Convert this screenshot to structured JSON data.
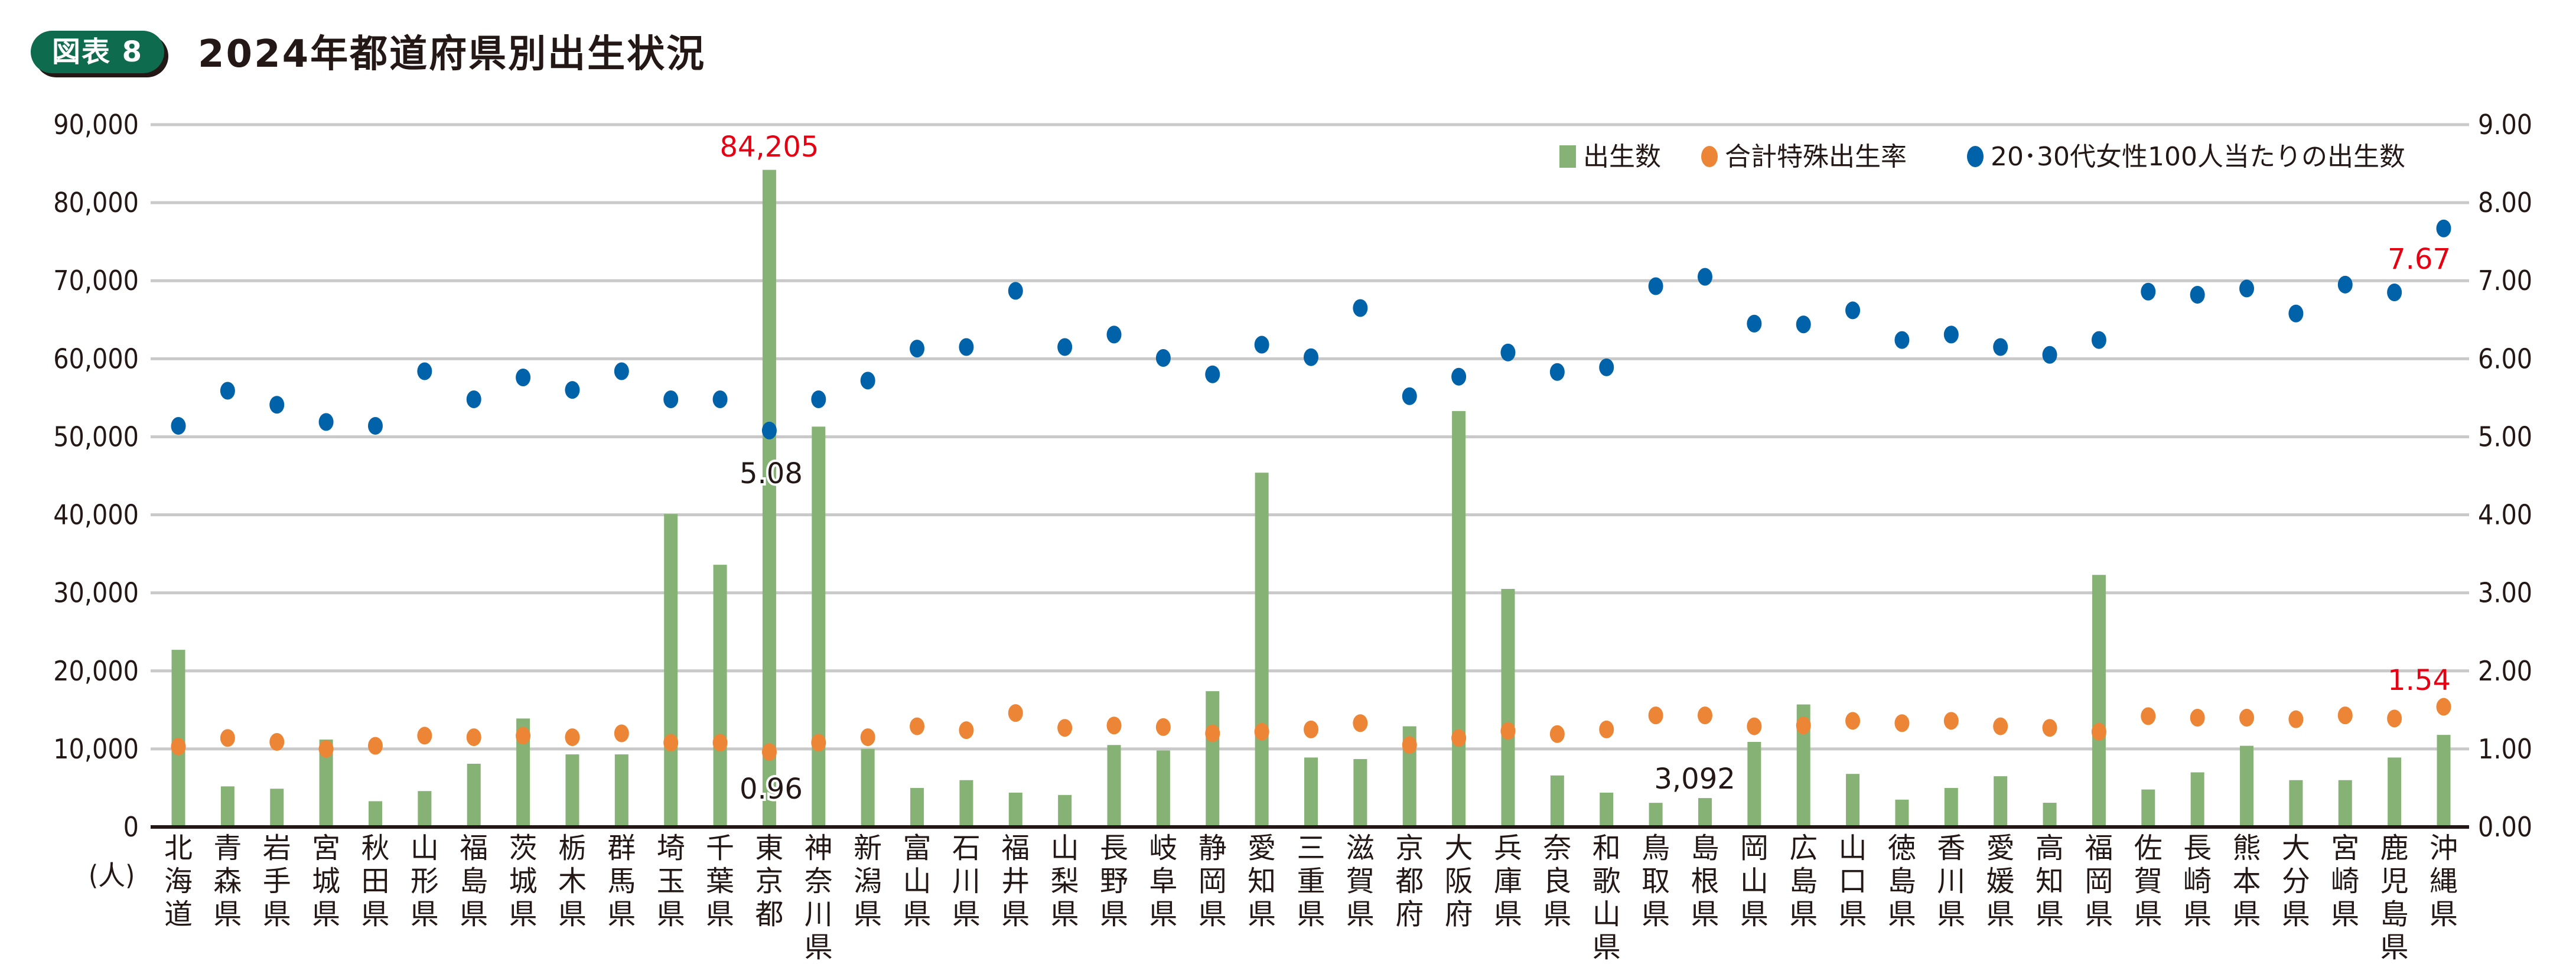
{
  "figure_tag": "図表 8",
  "title": "2024年都道府県別出生状況",
  "chart_data": {
    "type": "bar",
    "title": "2024年都道府県別出生状況",
    "y_unit_label": "(人)",
    "ylim": [
      0,
      90000
    ],
    "y2lim": [
      0,
      9
    ],
    "yticks": [
      "0",
      "10,000",
      "20,000",
      "30,000",
      "40,000",
      "50,000",
      "60,000",
      "70,000",
      "80,000",
      "90,000"
    ],
    "y2ticks": [
      "0.00",
      "1.00",
      "2.00",
      "3.00",
      "4.00",
      "5.00",
      "6.00",
      "7.00",
      "8.00",
      "9.00"
    ],
    "grid": true,
    "legend_position": "top-right",
    "colors": {
      "births": "#86b276",
      "tfr": "#ec8636",
      "per100": "#0062a8",
      "highlight": "#e60012",
      "axis": "#231815",
      "grid": "#c9c9c9",
      "badge": "#0e6b4e"
    },
    "categories": [
      "北海道",
      "青森県",
      "岩手県",
      "宮城県",
      "秋田県",
      "山形県",
      "福島県",
      "茨城県",
      "栃木県",
      "群馬県",
      "埼玉県",
      "千葉県",
      "東京都",
      "神奈川県",
      "新潟県",
      "富山県",
      "石川県",
      "福井県",
      "山梨県",
      "長野県",
      "岐阜県",
      "静岡県",
      "愛知県",
      "三重県",
      "滋賀県",
      "京都府",
      "大阪府",
      "兵庫県",
      "奈良県",
      "和歌山県",
      "鳥取県",
      "島根県",
      "岡山県",
      "広島県",
      "山口県",
      "徳島県",
      "香川県",
      "愛媛県",
      "高知県",
      "福岡県",
      "佐賀県",
      "長崎県",
      "熊本県",
      "大分県",
      "宮崎県",
      "鹿児島県",
      "沖縄県"
    ],
    "series": [
      {
        "name": "出生数",
        "type": "bar",
        "axis": "left",
        "values": [
          22700,
          5200,
          4900,
          11200,
          3300,
          4600,
          8100,
          13900,
          9300,
          9300,
          40100,
          33600,
          84205,
          51300,
          10000,
          5000,
          6000,
          4400,
          4100,
          10500,
          9800,
          17400,
          45400,
          8900,
          8700,
          12900,
          53300,
          30500,
          6600,
          4400,
          3092,
          3700,
          10900,
          15700,
          6800,
          3500,
          5000,
          6500,
          3100,
          32300,
          4800,
          7000,
          10400,
          6000,
          6000,
          8900,
          11800
        ]
      },
      {
        "name": "合計特殊出生率",
        "type": "scatter",
        "axis": "right",
        "values": [
          1.03,
          1.14,
          1.09,
          1.0,
          1.04,
          1.17,
          1.15,
          1.17,
          1.15,
          1.2,
          1.08,
          1.08,
          0.96,
          1.08,
          1.15,
          1.29,
          1.24,
          1.46,
          1.27,
          1.3,
          1.28,
          1.2,
          1.22,
          1.25,
          1.33,
          1.05,
          1.14,
          1.23,
          1.19,
          1.25,
          1.43,
          1.43,
          1.29,
          1.3,
          1.36,
          1.33,
          1.36,
          1.29,
          1.27,
          1.22,
          1.42,
          1.4,
          1.4,
          1.38,
          1.43,
          1.39,
          1.54
        ]
      },
      {
        "name": "20･30代女性100人当たりの出生数",
        "type": "scatter",
        "axis": "right",
        "values": [
          5.14,
          5.59,
          5.41,
          5.19,
          5.14,
          5.84,
          5.48,
          5.76,
          5.6,
          5.84,
          5.48,
          5.48,
          5.08,
          5.48,
          5.72,
          6.13,
          6.15,
          6.87,
          6.15,
          6.31,
          6.01,
          5.8,
          6.18,
          6.02,
          6.65,
          5.52,
          5.77,
          6.08,
          5.83,
          5.89,
          6.93,
          7.05,
          6.45,
          6.44,
          6.62,
          6.24,
          6.31,
          6.15,
          6.05,
          6.24,
          6.86,
          6.82,
          6.9,
          6.58,
          6.95,
          6.85,
          7.67
        ]
      }
    ],
    "annotations": [
      {
        "text": "84,205",
        "category": "東京都",
        "series": "出生数",
        "color": "red"
      },
      {
        "text": "5.08",
        "category": "東京都",
        "series": "20･30代女性100人当たりの出生数"
      },
      {
        "text": "0.96",
        "category": "東京都",
        "series": "合計特殊出生率"
      },
      {
        "text": "3,092",
        "category": "鳥取県",
        "series": "出生数"
      },
      {
        "text": "7.67",
        "category": "沖縄県",
        "series": "20･30代女性100人当たりの出生数",
        "color": "red"
      },
      {
        "text": "1.54",
        "category": "沖縄県",
        "series": "合計特殊出生率",
        "color": "red"
      }
    ]
  },
  "legend": {
    "items": [
      {
        "label": "出生数",
        "marker": "square",
        "series": "births"
      },
      {
        "label": "合計特殊出生率",
        "marker": "circle",
        "series": "tfr"
      },
      {
        "label": "20･30代女性100人当たりの出生数",
        "marker": "circle",
        "series": "per100"
      }
    ]
  }
}
